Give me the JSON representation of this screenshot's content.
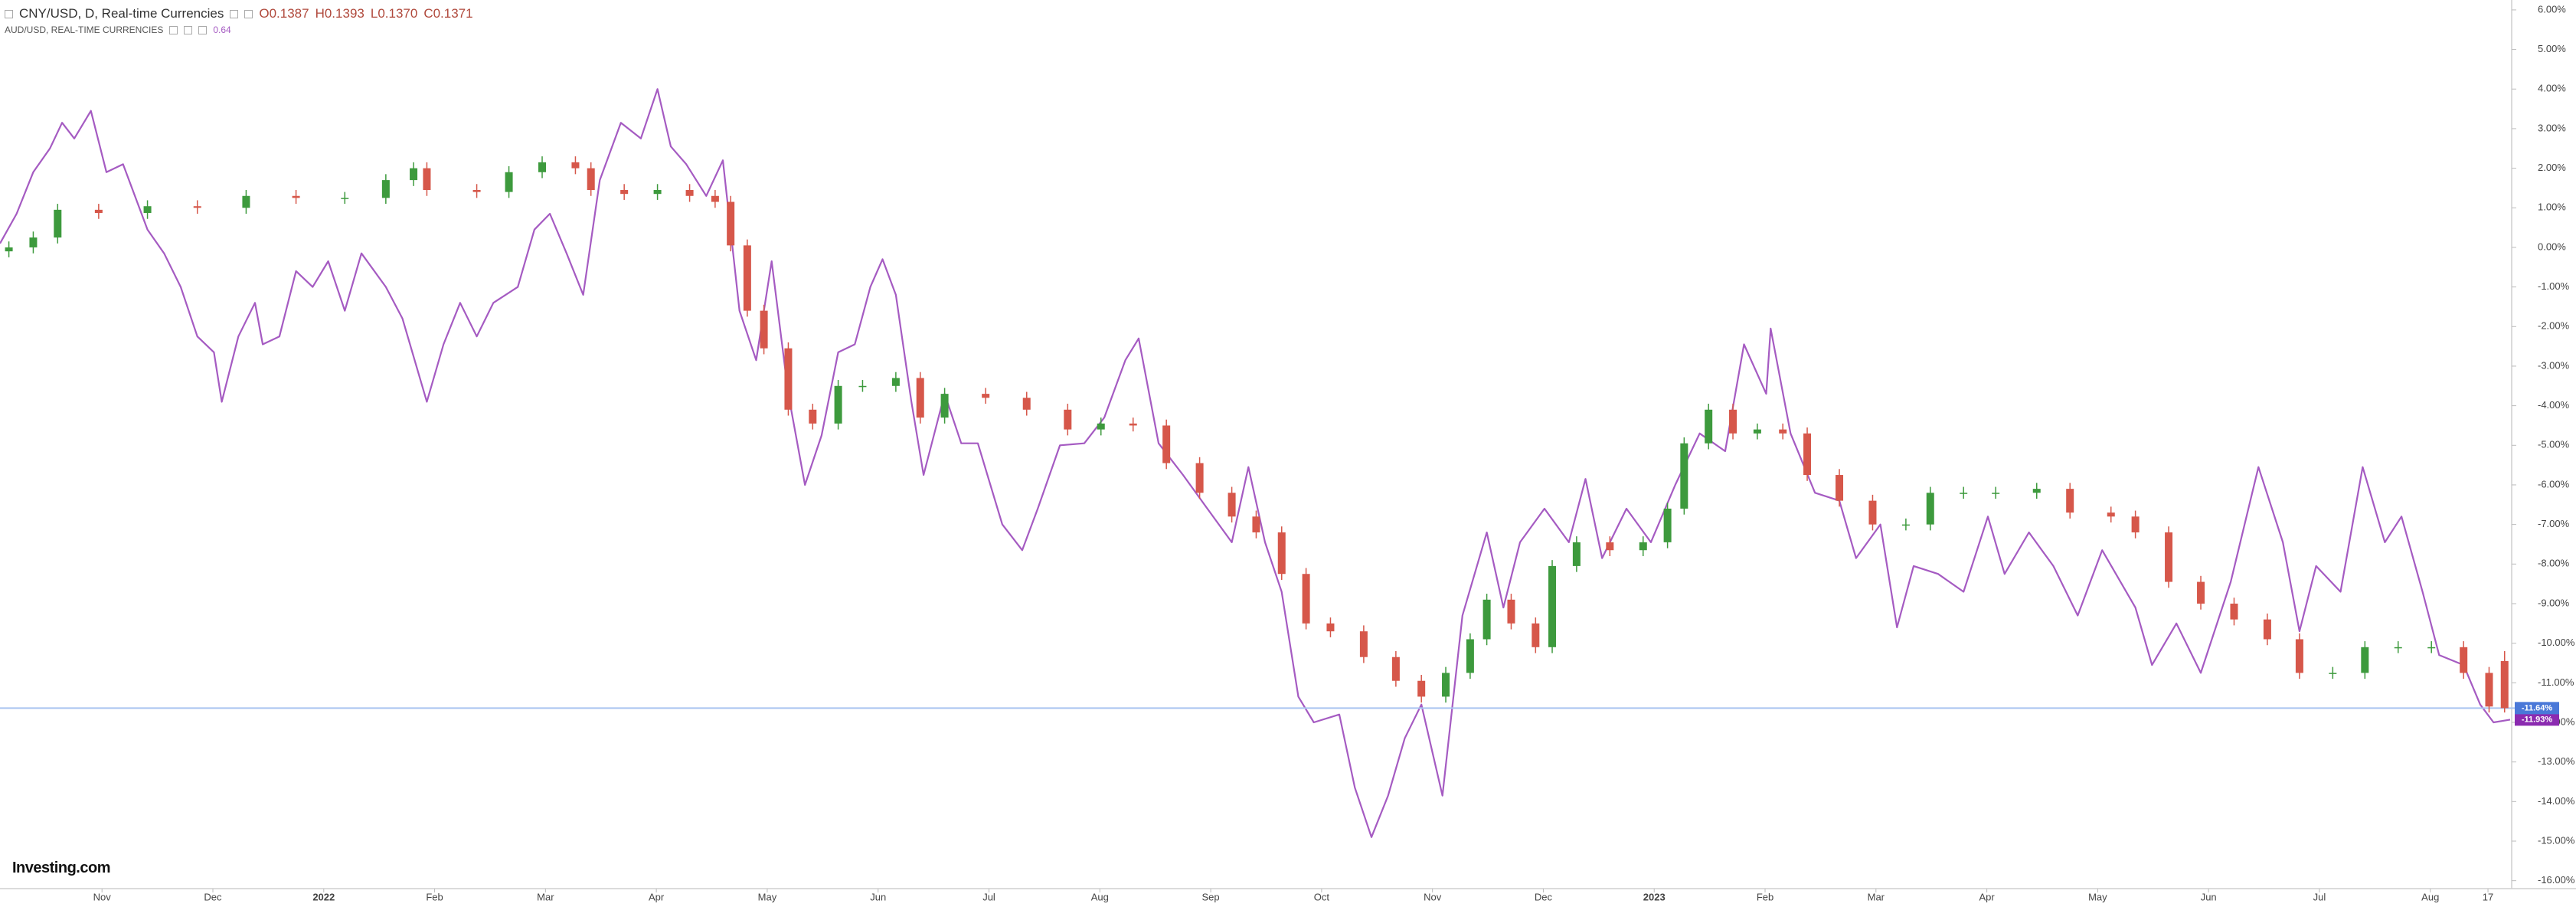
{
  "chart_data": {
    "type": "candlestick",
    "header": {
      "title": "CNY/USD, D, Real-time Currencies",
      "ohlc": [
        "O0.1387",
        "H0.1393",
        "L0.1370",
        "C0.1371"
      ],
      "compare_value": "0.64"
    },
    "watermark": "Investing.com",
    "xlim": [
      0.08,
      22.72
    ],
    "xticks": [
      {
        "value": 1,
        "label": "Nov"
      },
      {
        "value": 2,
        "label": "Dec"
      },
      {
        "value": 3,
        "label": "2022"
      },
      {
        "value": 4,
        "label": "Feb"
      },
      {
        "value": 5,
        "label": "Mar"
      },
      {
        "value": 6,
        "label": "Apr"
      },
      {
        "value": 7,
        "label": "May"
      },
      {
        "value": 8,
        "label": "Jun"
      },
      {
        "value": 9,
        "label": "Jul"
      },
      {
        "value": 10,
        "label": "Aug"
      },
      {
        "value": 11,
        "label": "Sep"
      },
      {
        "value": 12,
        "label": "Oct"
      },
      {
        "value": 13,
        "label": "Nov"
      },
      {
        "value": 14,
        "label": "Dec"
      },
      {
        "value": 15,
        "label": "2023"
      },
      {
        "value": 16,
        "label": "Feb"
      },
      {
        "value": 17,
        "label": "Mar"
      },
      {
        "value": 18,
        "label": "Apr"
      },
      {
        "value": 19,
        "label": "May"
      },
      {
        "value": 20,
        "label": "Jun"
      },
      {
        "value": 21,
        "label": "Jul"
      },
      {
        "value": 22,
        "label": "Aug"
      },
      {
        "value": 22.52,
        "label": "17"
      }
    ],
    "ylim": [
      -16.2,
      6.25
    ],
    "yticks": [
      {
        "value": 6,
        "label": "6.00%"
      },
      {
        "value": 5,
        "label": "5.00%"
      },
      {
        "value": 4,
        "label": "4.00%"
      },
      {
        "value": 3,
        "label": "3.00%"
      },
      {
        "value": 2,
        "label": "2.00%"
      },
      {
        "value": 1,
        "label": "1.00%"
      },
      {
        "value": 0,
        "label": "0.00%"
      },
      {
        "value": -1,
        "label": "-1.00%"
      },
      {
        "value": -2,
        "label": "-2.00%"
      },
      {
        "value": -3,
        "label": "-3.00%"
      },
      {
        "value": -4,
        "label": "-4.00%"
      },
      {
        "value": -5,
        "label": "-5.00%"
      },
      {
        "value": -6,
        "label": "-6.00%"
      },
      {
        "value": -7,
        "label": "-7.00%"
      },
      {
        "value": -8,
        "label": "-8.00%"
      },
      {
        "value": -9,
        "label": "-9.00%"
      },
      {
        "value": -10,
        "label": "-10.00%"
      },
      {
        "value": -11,
        "label": "-11.00%"
      },
      {
        "value": -12,
        "label": "-12.00%"
      },
      {
        "value": -13,
        "label": "-13.00%"
      },
      {
        "value": -14,
        "label": "-14.00%"
      },
      {
        "value": -15,
        "label": "-15.00%"
      },
      {
        "value": -16,
        "label": "-16.00%"
      }
    ],
    "grid": false,
    "series": [
      {
        "name": "CNY/USD, D, Real-time Currencies",
        "type": "candlestick",
        "up_color": "#3d9a3d",
        "down_color": "#d6574a",
        "price_line_color": "#a9c4f0",
        "last_value_label": "-11.64%",
        "label_color": "#4a78d8",
        "x": [
          0.16,
          0.38,
          0.6,
          0.97,
          1.41,
          1.86,
          2.3,
          2.75,
          3.19,
          3.56,
          3.81,
          3.93,
          4.38,
          4.67,
          4.97,
          5.27,
          5.41,
          5.71,
          6.01,
          6.3,
          6.53,
          6.67,
          6.82,
          6.97,
          7.19,
          7.41,
          7.64,
          7.86,
          8.16,
          8.38,
          8.6,
          8.97,
          9.34,
          9.71,
          10.01,
          10.3,
          10.6,
          10.9,
          11.19,
          11.41,
          11.64,
          11.86,
          12.08,
          12.38,
          12.67,
          12.9,
          13.12,
          13.34,
          13.49,
          13.71,
          13.93,
          14.08,
          14.3,
          14.6,
          14.9,
          15.12,
          15.27,
          15.49,
          15.71,
          15.93,
          16.16,
          16.38,
          16.67,
          16.97,
          17.27,
          17.49,
          17.79,
          18.08,
          18.45,
          18.75,
          19.12,
          19.34,
          19.64,
          19.93,
          20.23,
          20.53,
          20.82,
          21.12,
          21.41,
          21.71,
          22.01,
          22.3,
          22.53,
          22.67
        ],
        "open": [
          -0.1,
          0,
          0.25,
          0.95,
          0.87,
          1.04,
          1.0,
          1.3,
          1.25,
          1.25,
          1.7,
          2.0,
          1.45,
          1.4,
          1.9,
          2.15,
          2.0,
          1.45,
          1.35,
          1.45,
          1.3,
          1.15,
          0.05,
          -1.6,
          -2.55,
          -4.1,
          -4.45,
          -3.5,
          -3.5,
          -3.3,
          -4.3,
          -3.7,
          -3.8,
          -4.1,
          -4.6,
          -4.45,
          -4.5,
          -5.45,
          -6.2,
          -6.8,
          -7.2,
          -8.25,
          -9.5,
          -9.7,
          -10.35,
          -10.95,
          -11.35,
          -10.75,
          -9.9,
          -8.9,
          -9.5,
          -10.1,
          -8.05,
          -7.45,
          -7.65,
          -7.45,
          -6.6,
          -4.95,
          -4.1,
          -4.7,
          -4.6,
          -4.7,
          -5.75,
          -6.4,
          -7.0,
          -7.0,
          -6.2,
          -6.2,
          -6.2,
          -6.1,
          -6.7,
          -6.8,
          -7.2,
          -8.45,
          -9.0,
          -9.4,
          -9.9,
          -10.75,
          -10.75,
          -10.1,
          -10.1,
          -10.1,
          -10.75,
          -10.45
        ],
        "high": [
          0.15,
          0.4,
          1.1,
          1.1,
          1.19,
          1.19,
          1.45,
          1.45,
          1.4,
          1.85,
          2.15,
          2.15,
          1.6,
          2.05,
          2.3,
          2.3,
          2.15,
          1.6,
          1.6,
          1.6,
          1.45,
          1.3,
          0.2,
          -1.45,
          -2.4,
          -3.95,
          -3.35,
          -3.35,
          -3.15,
          -3.15,
          -3.55,
          -3.55,
          -3.65,
          -3.95,
          -4.3,
          -4.3,
          -4.35,
          -5.3,
          -6.05,
          -6.65,
          -7.05,
          -8.1,
          -9.35,
          -9.55,
          -10.2,
          -10.8,
          -10.6,
          -9.75,
          -8.75,
          -8.75,
          -9.35,
          -7.9,
          -7.3,
          -7.3,
          -7.3,
          -6.45,
          -4.8,
          -3.95,
          -3.95,
          -4.45,
          -4.45,
          -4.55,
          -5.6,
          -6.25,
          -6.85,
          -6.05,
          -6.05,
          -6.05,
          -5.95,
          -5.95,
          -6.55,
          -6.65,
          -7.05,
          -8.3,
          -8.85,
          -9.25,
          -9.75,
          -10.6,
          -9.95,
          -9.95,
          -9.95,
          -9.95,
          -10.6,
          -10.2
        ],
        "low": [
          -0.25,
          -0.15,
          0.1,
          0.72,
          0.72,
          0.85,
          0.85,
          1.1,
          1.1,
          1.1,
          1.55,
          1.3,
          1.25,
          1.25,
          1.75,
          1.85,
          1.3,
          1.2,
          1.2,
          1.15,
          1.0,
          -0.1,
          -1.75,
          -2.7,
          -4.25,
          -4.6,
          -4.6,
          -3.65,
          -3.65,
          -4.45,
          -4.45,
          -3.95,
          -4.25,
          -4.75,
          -4.75,
          -4.65,
          -5.6,
          -6.35,
          -6.95,
          -7.35,
          -8.4,
          -9.65,
          -9.85,
          -10.5,
          -11.1,
          -11.5,
          -11.5,
          -10.9,
          -10.05,
          -9.65,
          -10.25,
          -10.25,
          -8.2,
          -7.8,
          -7.8,
          -7.6,
          -6.75,
          -5.1,
          -4.85,
          -4.85,
          -4.85,
          -5.9,
          -6.55,
          -7.15,
          -7.15,
          -7.15,
          -6.35,
          -6.35,
          -6.35,
          -6.85,
          -6.95,
          -7.35,
          -8.6,
          -9.15,
          -9.55,
          -10.05,
          -10.9,
          -10.9,
          -10.9,
          -10.25,
          -10.25,
          -10.9,
          -11.75,
          -11.75
        ],
        "close": [
          0,
          0.25,
          0.95,
          0.87,
          1.04,
          1.0,
          1.3,
          1.25,
          1.25,
          1.7,
          2.0,
          1.45,
          1.4,
          1.9,
          2.15,
          2.0,
          1.45,
          1.35,
          1.45,
          1.3,
          1.15,
          0.05,
          -1.6,
          -2.55,
          -4.1,
          -4.45,
          -3.5,
          -3.5,
          -3.3,
          -4.3,
          -3.7,
          -3.8,
          -4.1,
          -4.6,
          -4.45,
          -4.5,
          -5.45,
          -6.2,
          -6.8,
          -7.2,
          -8.25,
          -9.5,
          -9.7,
          -10.35,
          -10.95,
          -11.35,
          -10.75,
          -9.9,
          -8.9,
          -9.5,
          -10.1,
          -8.05,
          -7.45,
          -7.65,
          -7.45,
          -6.6,
          -4.95,
          -4.1,
          -4.7,
          -4.6,
          -4.7,
          -5.75,
          -6.4,
          -7.0,
          -7.0,
          -6.2,
          -6.2,
          -6.2,
          -6.1,
          -6.7,
          -6.8,
          -7.2,
          -8.45,
          -9.0,
          -9.4,
          -9.9,
          -10.75,
          -10.75,
          -10.1,
          -10.1,
          -10.1,
          -10.75,
          -11.6,
          -11.64
        ]
      },
      {
        "name": "AUD/USD, REAL-TIME CURRENCIES",
        "type": "line",
        "color": "#a55bc2",
        "last_value_label": "-11.93%",
        "label_color": "#8b2bb0",
        "x": [
          0.08,
          0.23,
          0.38,
          0.53,
          0.64,
          0.75,
          0.9,
          1.04,
          1.19,
          1.41,
          1.56,
          1.71,
          1.86,
          2.01,
          2.08,
          2.23,
          2.38,
          2.45,
          2.6,
          2.75,
          2.9,
          3.04,
          3.19,
          3.34,
          3.56,
          3.71,
          3.93,
          4.08,
          4.23,
          4.38,
          4.53,
          4.75,
          4.9,
          5.04,
          5.19,
          5.34,
          5.49,
          5.68,
          5.86,
          6.01,
          6.13,
          6.27,
          6.45,
          6.6,
          6.75,
          6.9,
          7.04,
          7.19,
          7.34,
          7.49,
          7.64,
          7.79,
          7.93,
          8.04,
          8.16,
          8.3,
          8.41,
          8.6,
          8.75,
          8.9,
          9.12,
          9.3,
          9.44,
          9.64,
          9.86,
          10.04,
          10.23,
          10.35,
          10.53,
          10.75,
          10.97,
          11.19,
          11.34,
          11.49,
          11.64,
          11.79,
          11.93,
          12.16,
          12.3,
          12.45,
          12.6,
          12.75,
          12.9,
          13.09,
          13.27,
          13.49,
          13.64,
          13.79,
          14.01,
          14.23,
          14.38,
          14.53,
          14.75,
          14.97,
          15.19,
          15.41,
          15.64,
          15.81,
          16.01,
          16.05,
          16.23,
          16.45,
          16.67,
          16.82,
          17.04,
          17.19,
          17.34,
          17.56,
          17.79,
          18.01,
          18.16,
          18.38,
          18.6,
          18.82,
          19.04,
          19.34,
          19.49,
          19.71,
          19.93,
          20.2,
          20.45,
          20.67,
          20.82,
          20.97,
          21.19,
          21.39,
          21.59,
          21.74,
          21.93,
          22.08,
          22.3,
          22.45,
          22.57,
          22.72
        ],
        "values": [
          0.1,
          0.85,
          1.9,
          2.5,
          3.15,
          2.75,
          3.45,
          1.9,
          2.1,
          0.45,
          -0.15,
          -1.0,
          -2.25,
          -2.65,
          -3.9,
          -2.25,
          -1.4,
          -2.45,
          -2.25,
          -0.6,
          -1.0,
          -0.35,
          -1.6,
          -0.15,
          -1.0,
          -1.8,
          -3.9,
          -2.45,
          -1.4,
          -2.25,
          -1.4,
          -1.0,
          0.45,
          0.85,
          -0.15,
          -1.2,
          1.7,
          3.15,
          2.75,
          4.0,
          2.55,
          2.1,
          1.3,
          2.2,
          -1.6,
          -2.85,
          -0.35,
          -3.7,
          -6.0,
          -4.75,
          -2.65,
          -2.45,
          -1.0,
          -0.3,
          -1.2,
          -3.9,
          -5.75,
          -3.7,
          -4.95,
          -4.95,
          -7.0,
          -7.65,
          -6.6,
          -5.0,
          -4.95,
          -4.3,
          -2.85,
          -2.3,
          -4.95,
          -5.75,
          -6.6,
          -7.45,
          -5.55,
          -7.45,
          -8.7,
          -11.35,
          -12.0,
          -11.8,
          -13.65,
          -14.9,
          -13.85,
          -12.4,
          -11.55,
          -13.85,
          -9.3,
          -7.2,
          -9.1,
          -7.45,
          -6.6,
          -7.45,
          -5.85,
          -7.85,
          -6.6,
          -7.45,
          -6.0,
          -4.7,
          -5.15,
          -2.45,
          -3.7,
          -2.05,
          -4.7,
          -6.2,
          -6.4,
          -7.85,
          -7.0,
          -9.6,
          -8.05,
          -8.25,
          -8.7,
          -6.8,
          -8.25,
          -7.2,
          -8.05,
          -9.3,
          -7.65,
          -9.1,
          -10.55,
          -9.5,
          -10.75,
          -8.45,
          -5.55,
          -7.45,
          -9.7,
          -8.05,
          -8.7,
          -5.55,
          -7.45,
          -6.8,
          -8.7,
          -10.3,
          -10.55,
          -11.55,
          -12.0,
          -11.93
        ]
      }
    ]
  }
}
